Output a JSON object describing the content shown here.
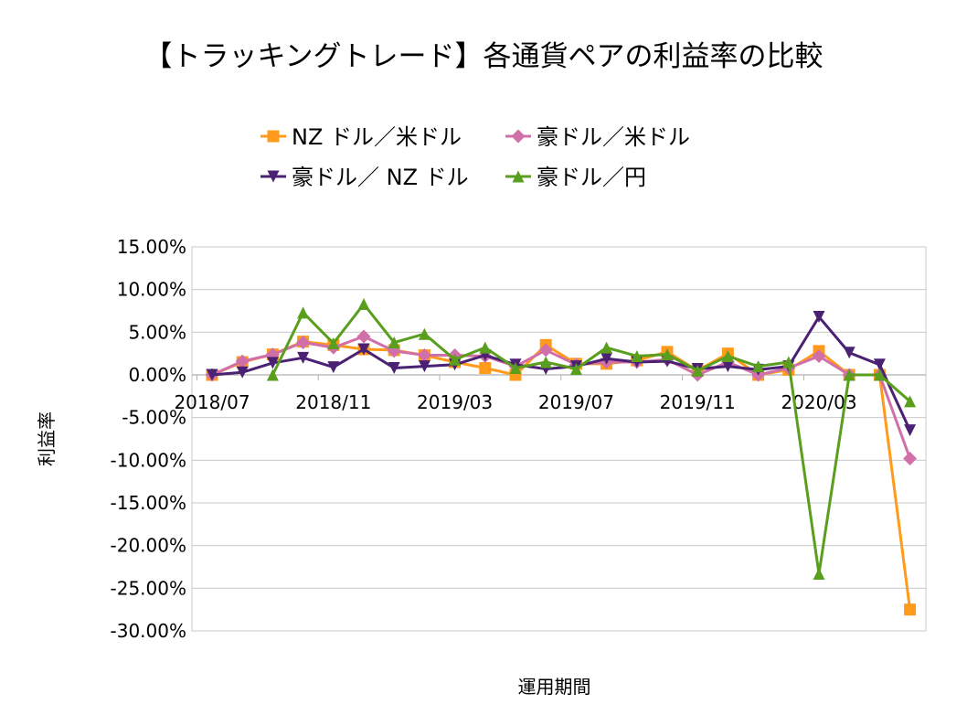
{
  "chart_data": {
    "type": "line",
    "title": "【トラッキングトレード】各通貨ペアの利益率の比較",
    "xlabel": "運用期間",
    "ylabel": "利益率",
    "ylim": [
      -30,
      15
    ],
    "ytick_step": 5,
    "ytick_format": "percent_2dp",
    "x": [
      "2018/07",
      "2018/08",
      "2018/09",
      "2018/10",
      "2018/11",
      "2018/12",
      "2019/01",
      "2019/02",
      "2019/03",
      "2019/04",
      "2019/05",
      "2019/06",
      "2019/07",
      "2019/08",
      "2019/09",
      "2019/10",
      "2019/11",
      "2019/12",
      "2020/01",
      "2020/02",
      "2020/03",
      "2020/04",
      "2020/05",
      "2020/06"
    ],
    "xtick_labels": [
      "2018/07",
      "2018/11",
      "2019/03",
      "2019/07",
      "2019/11",
      "2020/03"
    ],
    "grid": "horizontal",
    "legend_position": "top",
    "series": [
      {
        "name": "NZ ドル／米ドル",
        "color": "#ff9a1a",
        "marker": "square",
        "values": [
          0,
          1.5,
          2.4,
          3.9,
          3.5,
          3.0,
          2.9,
          2.3,
          1.5,
          0.8,
          0.0,
          3.5,
          1.3,
          1.3,
          1.7,
          2.7,
          0.5,
          2.5,
          0.0,
          0.6,
          2.8,
          0.0,
          0.0,
          -27.5
        ]
      },
      {
        "name": "豪ドル／米ドル",
        "color": "#d16fa8",
        "marker": "diamond",
        "values": [
          0,
          1.6,
          2.4,
          3.8,
          3.2,
          4.5,
          2.8,
          2.3,
          2.3,
          2.2,
          1.0,
          2.9,
          1.2,
          1.5,
          1.5,
          1.8,
          0.0,
          1.5,
          0.0,
          0.8,
          2.2,
          0.0,
          0.0,
          -9.8
        ]
      },
      {
        "name": "豪ドル／ NZ ドル",
        "color": "#4b2173",
        "marker": "triangle-down",
        "values": [
          0,
          0.3,
          1.4,
          2.0,
          0.9,
          3.0,
          0.8,
          1.0,
          1.2,
          2.3,
          1.2,
          0.7,
          1.0,
          1.9,
          1.5,
          1.6,
          0.7,
          1.0,
          0.6,
          1.0,
          6.8,
          2.6,
          1.2,
          -6.5
        ]
      },
      {
        "name": "豪ドル／円",
        "color": "#5a9e1e",
        "marker": "triangle-up",
        "values": [
          null,
          null,
          0,
          7.3,
          3.7,
          8.3,
          3.8,
          4.8,
          1.8,
          3.2,
          0.8,
          1.5,
          0.7,
          3.2,
          2.2,
          2.4,
          0.5,
          2.2,
          1.0,
          1.5,
          -23.3,
          0.0,
          0.0,
          -3.1
        ]
      }
    ]
  }
}
